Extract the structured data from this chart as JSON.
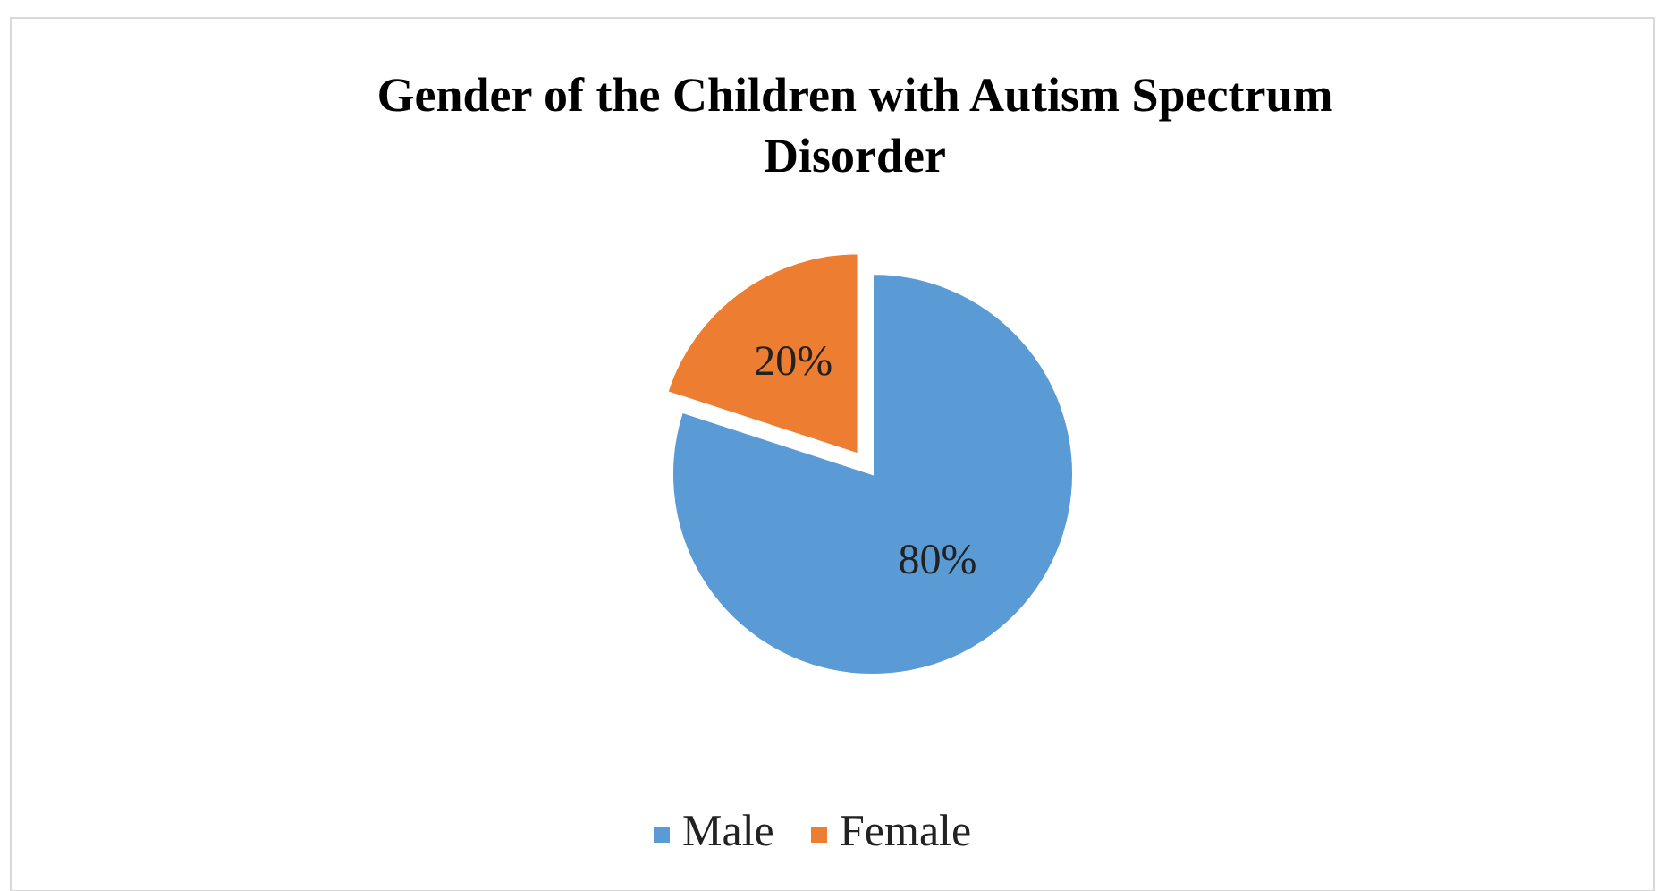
{
  "chart_data": {
    "type": "pie",
    "title": "Gender of the Children with Autism Spectrum Disorder",
    "categories": [
      "Male",
      "Female"
    ],
    "values": [
      80,
      20
    ],
    "colors": [
      "#5b9bd5",
      "#ed7d31"
    ],
    "value_labels": [
      "80%",
      "20%"
    ],
    "legend": "bottom"
  }
}
